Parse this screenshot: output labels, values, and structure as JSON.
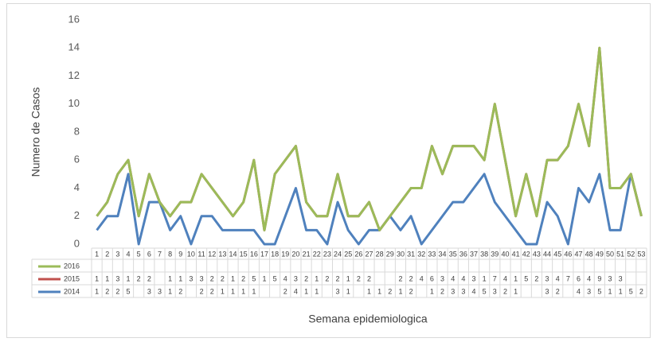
{
  "chart_data": {
    "type": "line",
    "stacked": true,
    "empty_cells": "zero",
    "x_label": "Semana epidemiologica",
    "y_label": "Numero de Casos",
    "categories": [
      1,
      2,
      3,
      4,
      5,
      6,
      7,
      8,
      9,
      10,
      11,
      12,
      13,
      14,
      15,
      16,
      17,
      18,
      19,
      20,
      21,
      22,
      23,
      24,
      25,
      26,
      27,
      28,
      29,
      30,
      31,
      32,
      33,
      34,
      35,
      36,
      37,
      38,
      39,
      40,
      41,
      42,
      43,
      44,
      45,
      46,
      47,
      48,
      49,
      50,
      51,
      52,
      53
    ],
    "ylim": [
      0,
      16
    ],
    "yticks": [
      0,
      2,
      4,
      6,
      8,
      10,
      12,
      14,
      16
    ],
    "series": [
      {
        "name": "2016",
        "color": "#9bbb59",
        "values": [
          null,
          null,
          null,
          null,
          null,
          null,
          null,
          null,
          null,
          null,
          null,
          null,
          null,
          null,
          null,
          null,
          null,
          null,
          null,
          null,
          null,
          null,
          null,
          null,
          null,
          null,
          null,
          null,
          null,
          null,
          null,
          null,
          null,
          null,
          null,
          null,
          null,
          null,
          null,
          null,
          null,
          null,
          null,
          null,
          null,
          null,
          null,
          null,
          null,
          null,
          null,
          null,
          null
        ]
      },
      {
        "name": "2015",
        "color": "#c0504d",
        "values": [
          1,
          1,
          3,
          1,
          2,
          2,
          null,
          1,
          1,
          3,
          3,
          2,
          2,
          1,
          2,
          5,
          1,
          5,
          4,
          3,
          2,
          1,
          2,
          2,
          1,
          2,
          2,
          null,
          null,
          2,
          2,
          4,
          6,
          3,
          4,
          4,
          3,
          1,
          7,
          4,
          1,
          5,
          2,
          3,
          4,
          7,
          6,
          4,
          9,
          3,
          3,
          null,
          null
        ]
      },
      {
        "name": "2014",
        "color": "#4f81bd",
        "values": [
          1,
          2,
          2,
          5,
          null,
          3,
          3,
          1,
          2,
          null,
          2,
          2,
          1,
          1,
          1,
          1,
          null,
          null,
          2,
          4,
          1,
          1,
          null,
          3,
          1,
          null,
          1,
          1,
          2,
          1,
          2,
          null,
          1,
          2,
          3,
          3,
          4,
          5,
          3,
          2,
          1,
          null,
          null,
          3,
          2,
          null,
          4,
          3,
          5,
          1,
          1,
          5,
          2
        ]
      }
    ]
  }
}
